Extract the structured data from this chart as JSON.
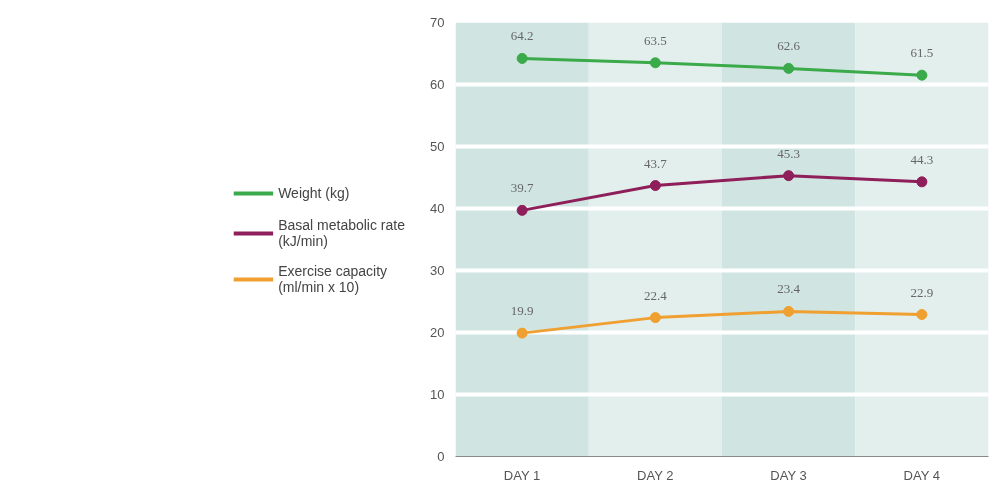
{
  "chart_data": {
    "type": "line",
    "categories": [
      "DAY 1",
      "DAY 2",
      "DAY 3",
      "DAY 4"
    ],
    "series": [
      {
        "name": "Weight (kg)",
        "color": "#3aaa4a",
        "values": [
          64.2,
          63.5,
          62.6,
          61.5
        ]
      },
      {
        "name": "Basal metabolic rate\n(kJ/min)",
        "color": "#8e1f5a",
        "values": [
          39.7,
          43.7,
          45.3,
          44.3
        ]
      },
      {
        "name": "Exercise capacity\n(ml/min x 10)",
        "color": "#f0a030",
        "values": [
          19.9,
          22.4,
          23.4,
          22.9
        ]
      }
    ],
    "ylim": [
      0,
      70
    ],
    "yticks": [
      0,
      10,
      20,
      30,
      40,
      50,
      60,
      70
    ],
    "grid": "y",
    "legend": "left",
    "marker": "circle",
    "line_style": "solid",
    "data_labels": true,
    "bands": [
      {
        "axis": "x",
        "from": "DAY 1",
        "to": "DAY 1",
        "color": "#d0e5e1"
      },
      {
        "axis": "x",
        "from": "DAY 2",
        "to": "DAY 2",
        "color": "#e2efec"
      },
      {
        "axis": "x",
        "from": "DAY 3",
        "to": "DAY 3",
        "color": "#d0e5e1"
      },
      {
        "axis": "x",
        "from": "DAY 4",
        "to": "DAY 4",
        "color": "#e2efec"
      }
    ]
  }
}
